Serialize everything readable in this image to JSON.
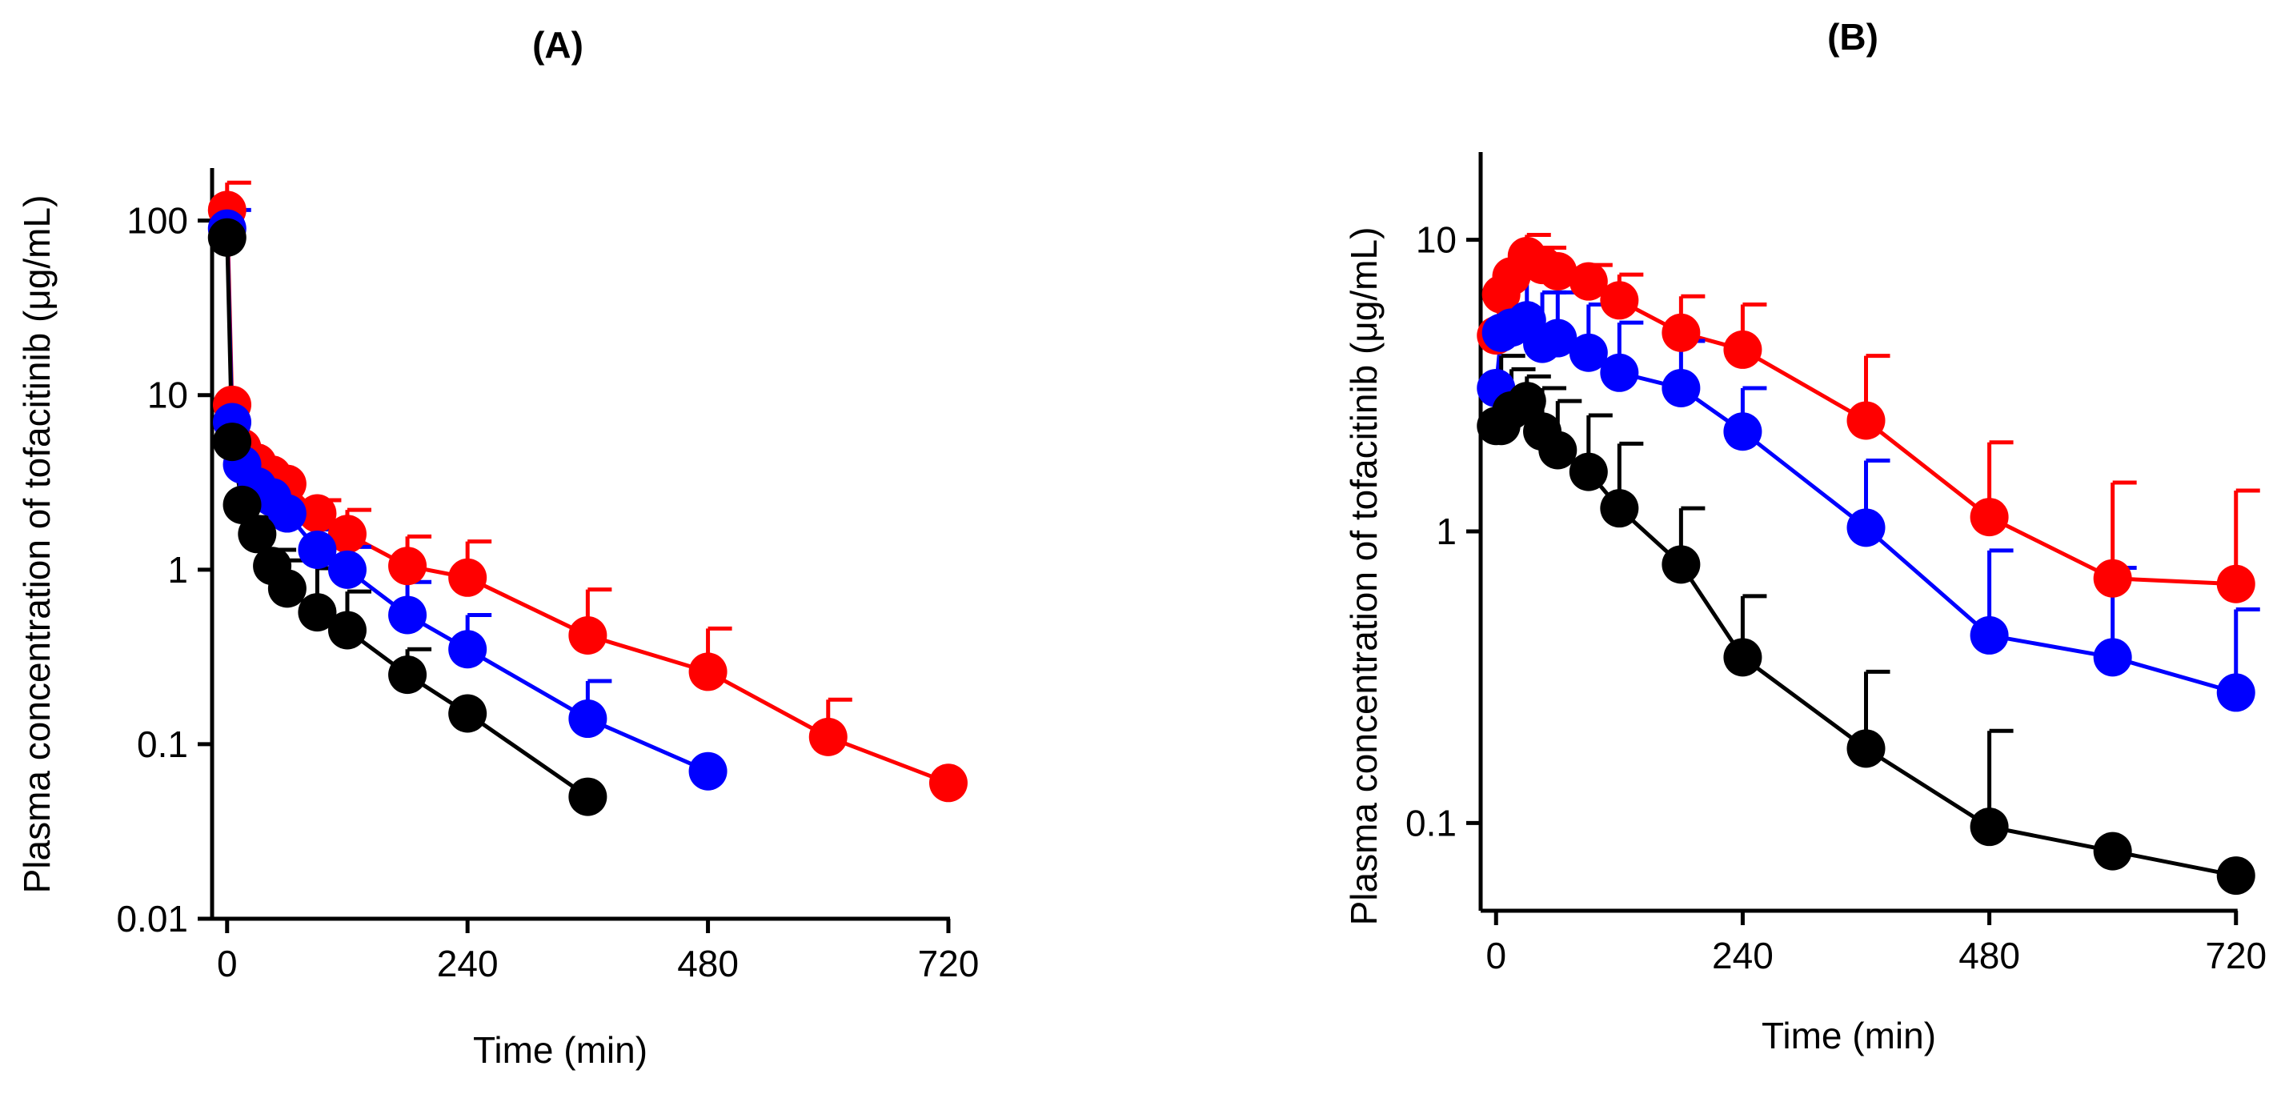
{
  "colors": {
    "control": "#000000",
    "mid": "#0000ff",
    "high": "#ff0000"
  },
  "chart_data": [
    {
      "type": "scatter",
      "title": "(A)",
      "xlabel": "Time (min)",
      "ylabel": "Plasma concentration of tofacitinib (μg/mL)",
      "yscale": "log",
      "xlim": [
        -15,
        740
      ],
      "ylim": [
        0.01,
        200
      ],
      "xticks": [
        0,
        240,
        480,
        720
      ],
      "xtick_labels": [
        "0",
        "240",
        "480",
        "720"
      ],
      "yticks": [
        0.01,
        0.1,
        1,
        10,
        100
      ],
      "ytick_labels": [
        "0.01",
        "0.1",
        "1",
        "10",
        "100"
      ],
      "series": [
        {
          "color": "#ff0000",
          "x": [
            0,
            5,
            15,
            30,
            45,
            60,
            90,
            120,
            180,
            240,
            360,
            480,
            600,
            720
          ],
          "y": [
            115,
            8.8,
            5.0,
            4.1,
            3.5,
            3.1,
            2.1,
            1.6,
            1.05,
            0.9,
            0.42,
            0.26,
            0.11,
            0.06
          ],
          "err": [
            50,
            null,
            null,
            null,
            null,
            null,
            0.4,
            0.6,
            0.5,
            0.55,
            0.35,
            0.2,
            0.07,
            null
          ]
        },
        {
          "color": "#0000ff",
          "x": [
            0,
            5,
            15,
            30,
            45,
            60,
            90,
            120,
            180,
            240,
            360,
            480
          ],
          "y": [
            90,
            7.0,
            4.0,
            3.0,
            2.6,
            2.1,
            1.3,
            1.0,
            0.55,
            0.35,
            0.14,
            0.07
          ],
          "err": [
            25,
            null,
            null,
            null,
            null,
            null,
            0.4,
            0.35,
            0.3,
            0.2,
            0.09,
            null
          ]
        },
        {
          "color": "#000000",
          "x": [
            0,
            5,
            15,
            30,
            45,
            60,
            90,
            120,
            180,
            240,
            360
          ],
          "y": [
            80,
            5.4,
            2.35,
            1.6,
            1.05,
            0.78,
            0.57,
            0.45,
            0.25,
            0.15,
            0.05
          ],
          "err": [
            null,
            null,
            1.2,
            0.4,
            0.25,
            0.35,
            0.45,
            0.3,
            0.1,
            null,
            null
          ]
        }
      ]
    },
    {
      "type": "scatter",
      "title": "(B)",
      "xlabel": "Time (min)",
      "ylabel": "Plasma concentration of tofacitinib (μg/mL)",
      "yscale": "log",
      "xlim": [
        -15,
        735
      ],
      "ylim": [
        0.05,
        20
      ],
      "xticks": [
        0,
        240,
        480,
        720
      ],
      "xtick_labels": [
        "0",
        "240",
        "480",
        "720"
      ],
      "yticks": [
        0.1,
        1,
        10
      ],
      "ytick_labels": [
        "0.1",
        "1",
        "10"
      ],
      "series": [
        {
          "color": "#ff0000",
          "x": [
            0,
            5,
            15,
            30,
            45,
            60,
            90,
            120,
            180,
            240,
            360,
            480,
            600,
            720
          ],
          "y": [
            4.7,
            6.5,
            7.5,
            8.8,
            8.2,
            7.8,
            7.2,
            6.2,
            4.8,
            4.2,
            2.4,
            1.12,
            0.69,
            0.66
          ],
          "err": [
            null,
            null,
            null,
            1.6,
            1.2,
            null,
            1.0,
            1.4,
            1.6,
            1.8,
            1.6,
            0.9,
            0.78,
            0.72
          ]
        },
        {
          "color": "#0000ff",
          "x": [
            0,
            5,
            15,
            30,
            45,
            60,
            90,
            120,
            180,
            240,
            360,
            480,
            600,
            720
          ],
          "y": [
            3.1,
            4.8,
            5.0,
            5.3,
            4.4,
            4.6,
            4.1,
            3.5,
            3.1,
            2.2,
            1.03,
            0.44,
            0.37,
            0.28
          ],
          "err": [
            null,
            null,
            3.0,
            2.5,
            2.2,
            2.0,
            1.9,
            1.7,
            1.4,
            0.9,
            0.72,
            0.42,
            0.38,
            0.26
          ]
        },
        {
          "color": "#000000",
          "x": [
            0,
            5,
            15,
            30,
            45,
            60,
            90,
            120,
            180,
            240,
            360,
            480,
            600,
            720
          ],
          "y": [
            2.3,
            2.3,
            2.6,
            2.8,
            2.2,
            1.9,
            1.6,
            1.2,
            0.77,
            0.37,
            0.18,
            0.097,
            0.08,
            0.066
          ],
          "err": [
            null,
            1.7,
            1.0,
            0.6,
            0.9,
            0.9,
            0.9,
            0.8,
            0.43,
            0.23,
            0.15,
            0.11,
            null,
            null
          ]
        }
      ]
    }
  ]
}
